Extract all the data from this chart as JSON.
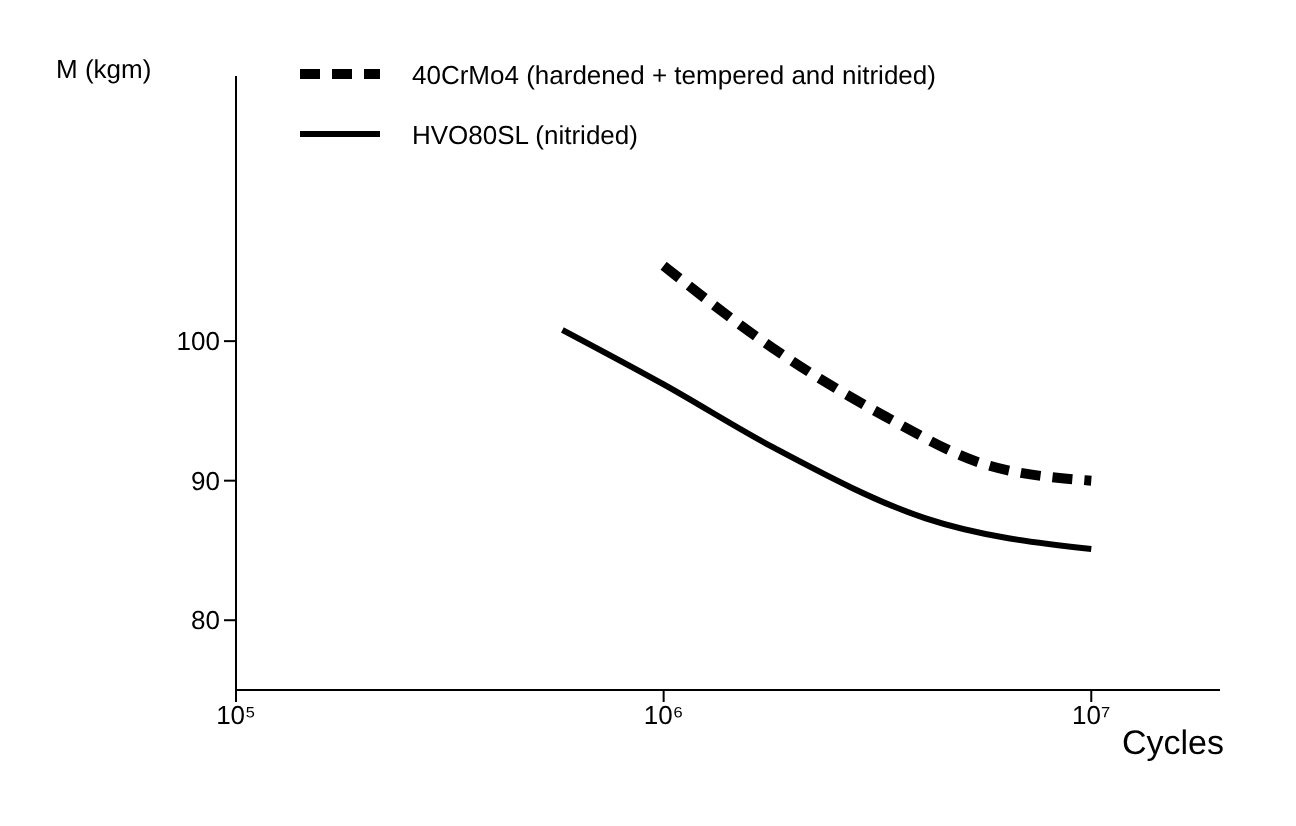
{
  "chart_data": {
    "type": "line",
    "ylabel": "M (kgm)",
    "xlabel": "Cycles",
    "log": "x",
    "xlim": [
      100000,
      20000000
    ],
    "xticks": [
      {
        "value": 100000,
        "label": "10⁵"
      },
      {
        "value": 1000000,
        "label": "10⁶"
      },
      {
        "value": 10000000,
        "label": "10⁷"
      }
    ],
    "ylim": [
      75,
      119
    ],
    "yticks": [
      80,
      90,
      100
    ],
    "legend": "top left",
    "marker": "none",
    "series": [
      {
        "name": "40CrMo4 (hardened + tempered and nitrided)",
        "color": "#000000",
        "line_style": "dashed",
        "x": [
          1000000,
          1800000,
          3300000,
          5600000,
          10000000
        ],
        "values": [
          105.4,
          99.5,
          94.6,
          91.2,
          90
        ]
      },
      {
        "name": "HVO80SL  (nitrided)",
        "color": "#000000",
        "line_style": "solid",
        "x": [
          580000,
          1000000,
          1800000,
          4100000,
          10000000
        ],
        "values": [
          100.8,
          96.9,
          92.4,
          87.3,
          85.1
        ]
      }
    ]
  }
}
